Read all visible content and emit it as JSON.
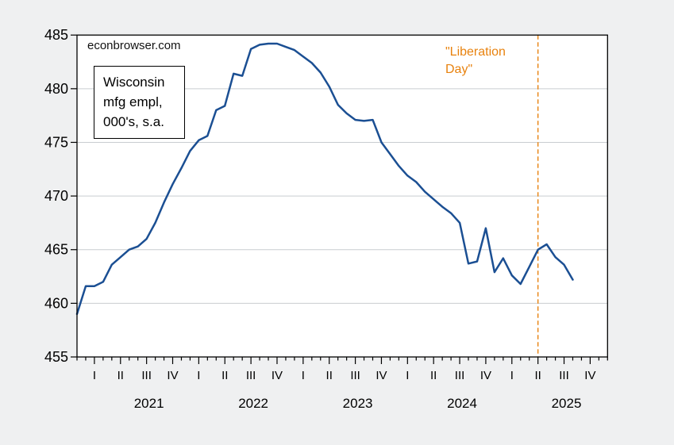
{
  "watermark": "econbrowser.com",
  "annotation_box": {
    "lines": [
      "Wisconsin",
      "mfg empl,",
      "000's, s.a."
    ]
  },
  "event_label": {
    "line1": "\"Liberation",
    "line2": "Day\""
  },
  "colors": {
    "line": "#1b4f93",
    "event": "#e8820e",
    "grid": "#c9cdd0",
    "frame": "#000000",
    "plot_bg": "#ffffff",
    "canvas_bg": "#eff0f1",
    "text": "#000000"
  },
  "chart_data": {
    "type": "line",
    "title": "Wisconsin mfg empl, 000's, s.a.",
    "watermark": "econbrowser.com",
    "xlabel": "",
    "ylabel": "",
    "ylim": [
      455,
      485
    ],
    "yticks": [
      455,
      460,
      465,
      470,
      475,
      480,
      485
    ],
    "grid": "horizontal",
    "frequency": "monthly",
    "x_domain_months": 61,
    "x_axis": {
      "quarter_labels": [
        "I",
        "II",
        "III",
        "IV"
      ],
      "first_quarter_label_month_index": 2,
      "years": [
        "2021",
        "2022",
        "2023",
        "2024",
        "2025"
      ]
    },
    "event_line": {
      "month": "2025-04",
      "label": "\"Liberation Day\"",
      "style": "dashed",
      "color": "#e8820e"
    },
    "months": [
      "2020-11",
      "2020-12",
      "2021-01",
      "2021-02",
      "2021-03",
      "2021-04",
      "2021-05",
      "2021-06",
      "2021-07",
      "2021-08",
      "2021-09",
      "2021-10",
      "2021-11",
      "2021-12",
      "2022-01",
      "2022-02",
      "2022-03",
      "2022-04",
      "2022-05",
      "2022-06",
      "2022-07",
      "2022-08",
      "2022-09",
      "2022-10",
      "2022-11",
      "2022-12",
      "2023-01",
      "2023-02",
      "2023-03",
      "2023-04",
      "2023-05",
      "2023-06",
      "2023-07",
      "2023-08",
      "2023-09",
      "2023-10",
      "2023-11",
      "2023-12",
      "2024-01",
      "2024-02",
      "2024-03",
      "2024-04",
      "2024-05",
      "2024-06",
      "2024-07",
      "2024-08",
      "2024-09",
      "2024-10",
      "2024-11",
      "2024-12",
      "2025-01",
      "2025-02",
      "2025-03",
      "2025-04",
      "2025-05",
      "2025-06",
      "2025-07",
      "2025-08"
    ],
    "series": [
      {
        "name": "Wisconsin manufacturing employment, thousands, seasonally adjusted",
        "color": "#1b4f93",
        "values": [
          459.0,
          461.6,
          461.6,
          462.0,
          463.6,
          464.3,
          465.0,
          465.3,
          466.0,
          467.5,
          469.4,
          471.1,
          472.6,
          474.2,
          475.2,
          475.6,
          478.0,
          478.4,
          481.4,
          481.2,
          483.7,
          484.1,
          484.2,
          484.2,
          483.9,
          483.6,
          483.0,
          482.4,
          481.5,
          480.2,
          478.5,
          477.7,
          477.1,
          477.0,
          477.1,
          475.0,
          473.9,
          472.8,
          471.9,
          471.3,
          470.4,
          469.7,
          469.0,
          468.4,
          467.5,
          463.7,
          463.9,
          467.0,
          462.9,
          464.2,
          462.6,
          461.8,
          463.4,
          465.0,
          465.5,
          464.3,
          463.6,
          462.2
        ]
      }
    ]
  }
}
